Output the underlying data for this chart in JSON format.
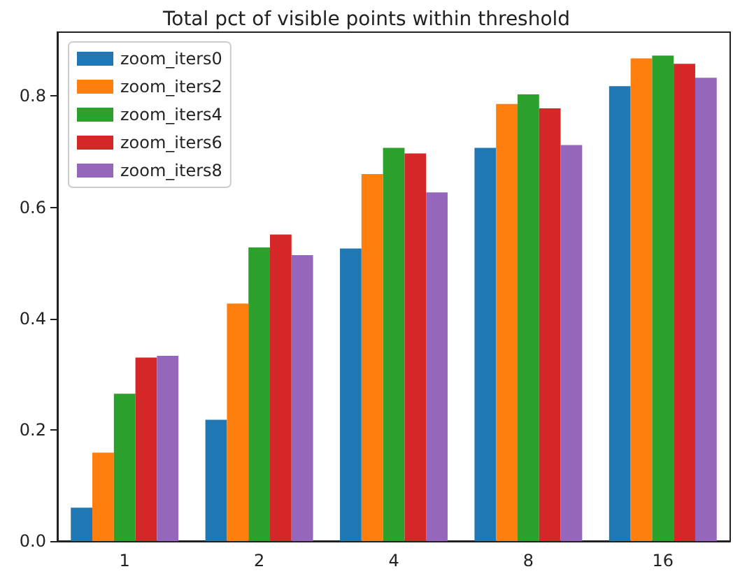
{
  "chart_data": {
    "type": "bar",
    "title": "Total pct of visible points within threshold",
    "categories": [
      "1",
      "2",
      "4",
      "8",
      "16"
    ],
    "series": [
      {
        "name": "zoom_iters0",
        "color": "#1f77b4",
        "values": [
          0.06,
          0.218,
          0.526,
          0.707,
          0.818
        ]
      },
      {
        "name": "zoom_iters2",
        "color": "#ff7f0e",
        "values": [
          0.159,
          0.427,
          0.66,
          0.786,
          0.868
        ]
      },
      {
        "name": "zoom_iters4",
        "color": "#2ca02c",
        "values": [
          0.265,
          0.528,
          0.707,
          0.803,
          0.873
        ]
      },
      {
        "name": "zoom_iters6",
        "color": "#d62728",
        "values": [
          0.33,
          0.551,
          0.697,
          0.778,
          0.858
        ]
      },
      {
        "name": "zoom_iters8",
        "color": "#9467bd",
        "values": [
          0.333,
          0.514,
          0.627,
          0.712,
          0.833
        ]
      }
    ],
    "ylim": [
      0,
      0.915
    ],
    "yticks": [
      {
        "value": 0,
        "label": "0.0"
      },
      {
        "value": 0.2,
        "label": "0.2"
      },
      {
        "value": 0.4,
        "label": "0.4"
      },
      {
        "value": 0.6,
        "label": "0.6"
      },
      {
        "value": 0.8,
        "label": "0.8"
      }
    ],
    "grid": false,
    "legend": "top left"
  }
}
